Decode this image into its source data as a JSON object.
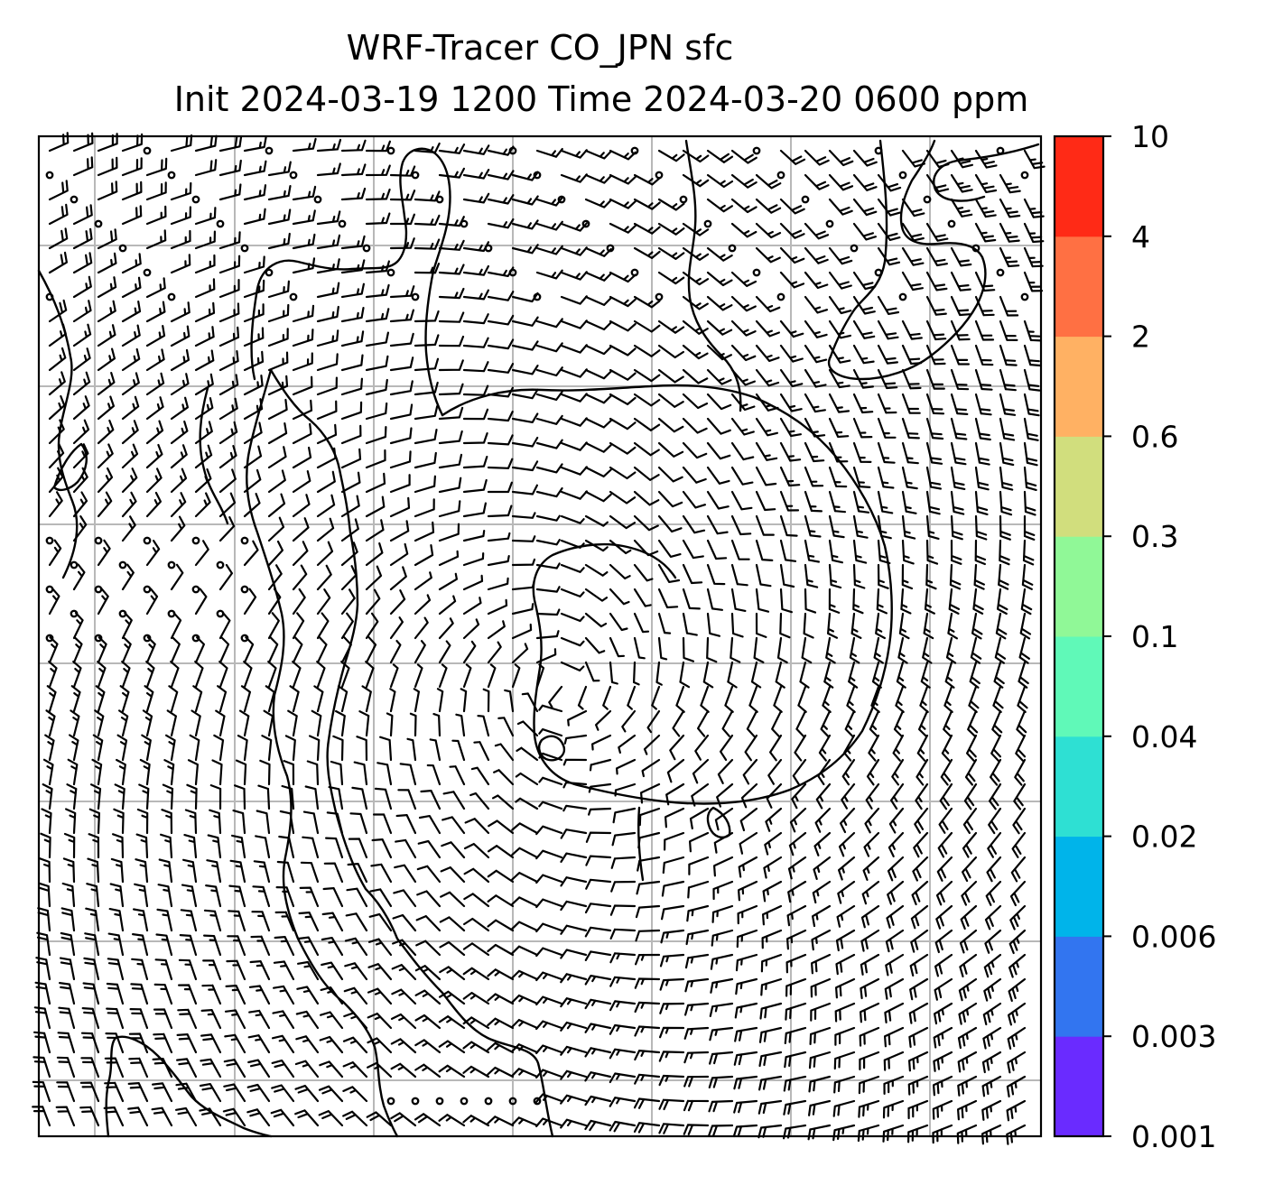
{
  "title": {
    "line1": "WRF-Tracer CO_JPN sfc",
    "line2": "Init 2024-03-19 1200 Time 2024-03-20 0600 ppm"
  },
  "colorbar": {
    "levels": [
      "0.001",
      "0.003",
      "0.006",
      "0.02",
      "0.04",
      "0.1",
      "0.3",
      "0.6",
      "2",
      "4",
      "10"
    ],
    "colors": [
      "#6a2bff",
      "#3275f0",
      "#00b4ea",
      "#2ee0d3",
      "#60f9b8",
      "#90f897",
      "#d1de7d",
      "#ffb163",
      "#ff7043",
      "#ff2a16"
    ]
  },
  "map": {
    "field": "CO tracer (no shading above 0.001 ppm in view)",
    "wind_barbs": true,
    "gridlines": true
  }
}
